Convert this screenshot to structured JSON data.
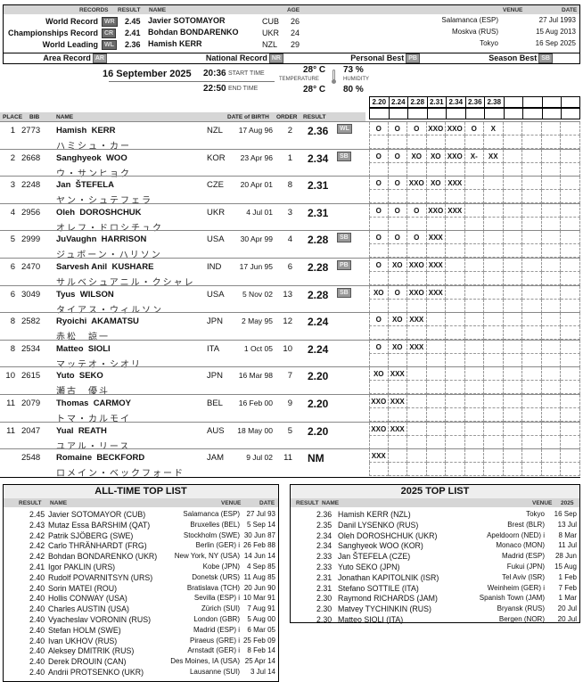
{
  "records": {
    "headers": {
      "records": "RECORDS",
      "result": "RESULT",
      "name": "NAME",
      "age": "AGE",
      "venue": "VENUE",
      "date": "DATE"
    },
    "rows": [
      {
        "label": "World Record",
        "badge": "WR",
        "result": "2.45",
        "name": "Javier SOTOMAYOR",
        "nat": "CUB",
        "age": "26",
        "venue": "Salamanca (ESP)",
        "date": "27 Jul 1993"
      },
      {
        "label": "Championships Record",
        "badge": "CR",
        "result": "2.41",
        "name": "Bohdan BONDARENKO",
        "nat": "UKR",
        "age": "24",
        "venue": "Moskva (RUS)",
        "date": "15 Aug 2013"
      },
      {
        "label": "World Leading",
        "badge": "WL",
        "result": "2.36",
        "name": "Hamish KERR",
        "nat": "NZL",
        "age": "29",
        "venue": "Tokyo",
        "date": "16 Sep 2025"
      }
    ],
    "legend": [
      {
        "label": "Area Record",
        "badge": "AR"
      },
      {
        "label": "National Record",
        "badge": "NR"
      },
      {
        "label": "Personal Best",
        "badge": "PB"
      },
      {
        "label": "Season Best",
        "badge": "SB"
      }
    ]
  },
  "event": {
    "date": "16 September  2025",
    "start_time": "20:36",
    "start_label": "START TIME",
    "end_time": "22:50",
    "end_label": "END TIME",
    "temp_start": "28° C",
    "temp_end": "28° C",
    "temp_label": "TEMPERATURE",
    "hum_start": "73 %",
    "hum_end": "80 %",
    "hum_label": "HUMIDITY"
  },
  "heights": [
    "2.20",
    "2.24",
    "2.28",
    "2.31",
    "2.34",
    "2.36",
    "2.38",
    "",
    "",
    "",
    ""
  ],
  "table": {
    "headers": {
      "place": "PLACE",
      "bib": "BIB",
      "name": "NAME",
      "dob": "DATE of BIRTH",
      "order": "ORDER",
      "result": "RESULT"
    },
    "rows": [
      {
        "place": "1",
        "bib": "2773",
        "name": "Hamish  KERR",
        "jp": "ハミシュ・カー",
        "nat": "NZL",
        "dob": "17 Aug 96",
        "order": "2",
        "result": "2.36",
        "badge": "WL",
        "attempts": [
          "O",
          "O",
          "O",
          "XXO",
          "XXO",
          "O",
          "X"
        ]
      },
      {
        "place": "2",
        "bib": "2668",
        "name": "Sanghyeok  WOO",
        "jp": "ウ・サンヒョク",
        "nat": "KOR",
        "dob": "23 Apr 96",
        "order": "1",
        "result": "2.34",
        "badge": "SB",
        "attempts": [
          "O",
          "O",
          "XO",
          "XO",
          "XXO",
          "X-",
          "XX"
        ]
      },
      {
        "place": "3",
        "bib": "2248",
        "name": "Jan  ŠTEFELA",
        "jp": "ヤン・シュテフェラ",
        "nat": "CZE",
        "dob": "20 Apr 01",
        "order": "8",
        "result": "2.31",
        "badge": "",
        "attempts": [
          "O",
          "O",
          "XXO",
          "XO",
          "XXX"
        ]
      },
      {
        "place": "4",
        "bib": "2956",
        "name": "Oleh  DOROSHCHUK",
        "jp": "オレフ・ドロシチュク",
        "nat": "UKR",
        "dob": "4 Jul 01",
        "order": "3",
        "result": "2.31",
        "badge": "",
        "attempts": [
          "O",
          "O",
          "O",
          "XXO",
          "XXX"
        ]
      },
      {
        "place": "5",
        "bib": "2999",
        "name": "JuVaughn  HARRISON",
        "jp": "ジュボーン・ハリソン",
        "nat": "USA",
        "dob": "30 Apr 99",
        "order": "4",
        "result": "2.28",
        "badge": "SB",
        "attempts": [
          "O",
          "O",
          "O",
          "XXX"
        ]
      },
      {
        "place": "6",
        "bib": "2470",
        "name": "Sarvesh Anil  KUSHARE",
        "jp": "サルベシュアニル・クシャレ",
        "nat": "IND",
        "dob": "17 Jun 95",
        "order": "6",
        "result": "2.28",
        "badge": "PB",
        "attempts": [
          "O",
          "XO",
          "XXO",
          "XXX"
        ]
      },
      {
        "place": "6",
        "bib": "3049",
        "name": "Tyus  WILSON",
        "jp": "タイアス・ウィルソン",
        "nat": "USA",
        "dob": "5 Nov 02",
        "order": "13",
        "result": "2.28",
        "badge": "SB",
        "attempts": [
          "XO",
          "O",
          "XXO",
          "XXX"
        ]
      },
      {
        "place": "8",
        "bib": "2582",
        "name": "Ryoichi  AKAMATSU",
        "jp": "赤松　諒一",
        "nat": "JPN",
        "dob": "2 May 95",
        "order": "12",
        "result": "2.24",
        "badge": "",
        "attempts": [
          "O",
          "XO",
          "XXX"
        ]
      },
      {
        "place": "8",
        "bib": "2534",
        "name": "Matteo  SIOLI",
        "jp": "マッテオ・シオリ",
        "nat": "ITA",
        "dob": "1 Oct 05",
        "order": "10",
        "result": "2.24",
        "badge": "",
        "attempts": [
          "O",
          "XO",
          "XXX"
        ]
      },
      {
        "place": "10",
        "bib": "2615",
        "name": "Yuto  SEKO",
        "jp": "瀬古　優斗",
        "nat": "JPN",
        "dob": "16 Mar 98",
        "order": "7",
        "result": "2.20",
        "badge": "",
        "attempts": [
          "XO",
          "XXX"
        ]
      },
      {
        "place": "11",
        "bib": "2079",
        "name": "Thomas  CARMOY",
        "jp": "トマ・カルモイ",
        "nat": "BEL",
        "dob": "16 Feb 00",
        "order": "9",
        "result": "2.20",
        "badge": "",
        "attempts": [
          "XXO",
          "XXX"
        ]
      },
      {
        "place": "11",
        "bib": "2047",
        "name": "Yual  REATH",
        "jp": "ユアル・リース",
        "nat": "AUS",
        "dob": "18 May 00",
        "order": "5",
        "result": "2.20",
        "badge": "",
        "attempts": [
          "XXO",
          "XXX"
        ]
      },
      {
        "place": "",
        "bib": "2548",
        "name": "Romaine  BECKFORD",
        "jp": "ロメイン・ベックフォード",
        "nat": "JAM",
        "dob": "9 Jul 02",
        "order": "11",
        "result": "NM",
        "badge": "",
        "attempts": [
          "XXX"
        ]
      }
    ]
  },
  "alltime": {
    "title": "ALL-TIME TOP LIST",
    "headers": {
      "result": "RESULT",
      "name": "NAME",
      "venue": "VENUE",
      "date": "DATE"
    },
    "rows": [
      [
        "2.45",
        "Javier SOTOMAYOR (CUB)",
        "Salamanca (ESP)",
        "27 Jul 93"
      ],
      [
        "2.43",
        "Mutaz Essa BARSHIM (QAT)",
        "Bruxelles (BEL)",
        "5 Sep 14"
      ],
      [
        "2.42",
        "Patrik SJÖBERG (SWE)",
        "Stockholm (SWE)",
        "30 Jun 87"
      ],
      [
        "2.42",
        "Carlo THRÄNHARDT (FRG)",
        "Berlin (GER) i",
        "26 Feb 88"
      ],
      [
        "2.42",
        "Bohdan BONDARENKO (UKR)",
        "New York, NY (USA)",
        "14 Jun 14"
      ],
      [
        "2.41",
        "Igor PAKLIN (URS)",
        "Kobe (JPN)",
        "4 Sep 85"
      ],
      [
        "2.40",
        "Rudolf POVARNITSYN (URS)",
        "Donetsk (URS)",
        "11 Aug 85"
      ],
      [
        "2.40",
        "Sorin MATEI (ROU)",
        "Bratislava (TCH)",
        "20 Jun 90"
      ],
      [
        "2.40",
        "Hollis CONWAY (USA)",
        "Sevilla (ESP) i",
        "10 Mar 91"
      ],
      [
        "2.40",
        "Charles AUSTIN (USA)",
        "Zürich (SUI)",
        "7 Aug 91"
      ],
      [
        "2.40",
        "Vyacheslav VORONIN (RUS)",
        "London (GBR)",
        "5 Aug 00"
      ],
      [
        "2.40",
        "Stefan HOLM (SWE)",
        "Madrid (ESP) i",
        "6 Mar 05"
      ],
      [
        "2.40",
        "Ivan UKHOV (RUS)",
        "Piraeus (GRE) i",
        "25 Feb 09"
      ],
      [
        "2.40",
        "Aleksey DMITRIK (RUS)",
        "Arnstadt (GER) i",
        "8 Feb 14"
      ],
      [
        "2.40",
        "Derek DROUIN (CAN)",
        "Des Moines, IA (USA)",
        "25 Apr 14"
      ],
      [
        "2.40",
        "Andrii PROTSENKO (UKR)",
        "Lausanne (SUI)",
        "3 Jul 14"
      ]
    ]
  },
  "yeartop": {
    "title": "2025 TOP LIST",
    "headers": {
      "result": "RESULT",
      "name": "NAME",
      "venue": "VENUE",
      "date": "2025"
    },
    "rows": [
      [
        "2.36",
        "Hamish KERR (NZL)",
        "Tokyo",
        "16 Sep"
      ],
      [
        "2.35",
        "Danil LYSENKO (RUS)",
        "Brest (BLR)",
        "13 Jul"
      ],
      [
        "2.34",
        "Oleh DOROSHCHUK (UKR)",
        "Apeldoorn (NED) i",
        "8 Mar"
      ],
      [
        "2.34",
        "Sanghyeok WOO (KOR)",
        "Monaco (MON)",
        "11 Jul"
      ],
      [
        "2.33",
        "Jan ŠTEFELA (CZE)",
        "Madrid (ESP)",
        "28 Jun"
      ],
      [
        "2.33",
        "Yuto SEKO (JPN)",
        "Fukui (JPN)",
        "15 Aug"
      ],
      [
        "2.31",
        "Jonathan KAPITOLNIK (ISR)",
        "Tel Aviv (ISR)",
        "1 Feb"
      ],
      [
        "2.31",
        "Stefano SOTTILE (ITA)",
        "Weinheim (GER) i",
        "7 Feb"
      ],
      [
        "2.30",
        "Raymond RICHARDS (JAM)",
        "Spanish Town (JAM)",
        "1 Mar"
      ],
      [
        "2.30",
        "Matvey TYCHINKIN (RUS)",
        "Bryansk (RUS)",
        "20 Jul"
      ],
      [
        "2.30",
        "Matteo SIOLI (ITA)",
        "Bergen (NOR)",
        "20 Jul"
      ]
    ]
  }
}
